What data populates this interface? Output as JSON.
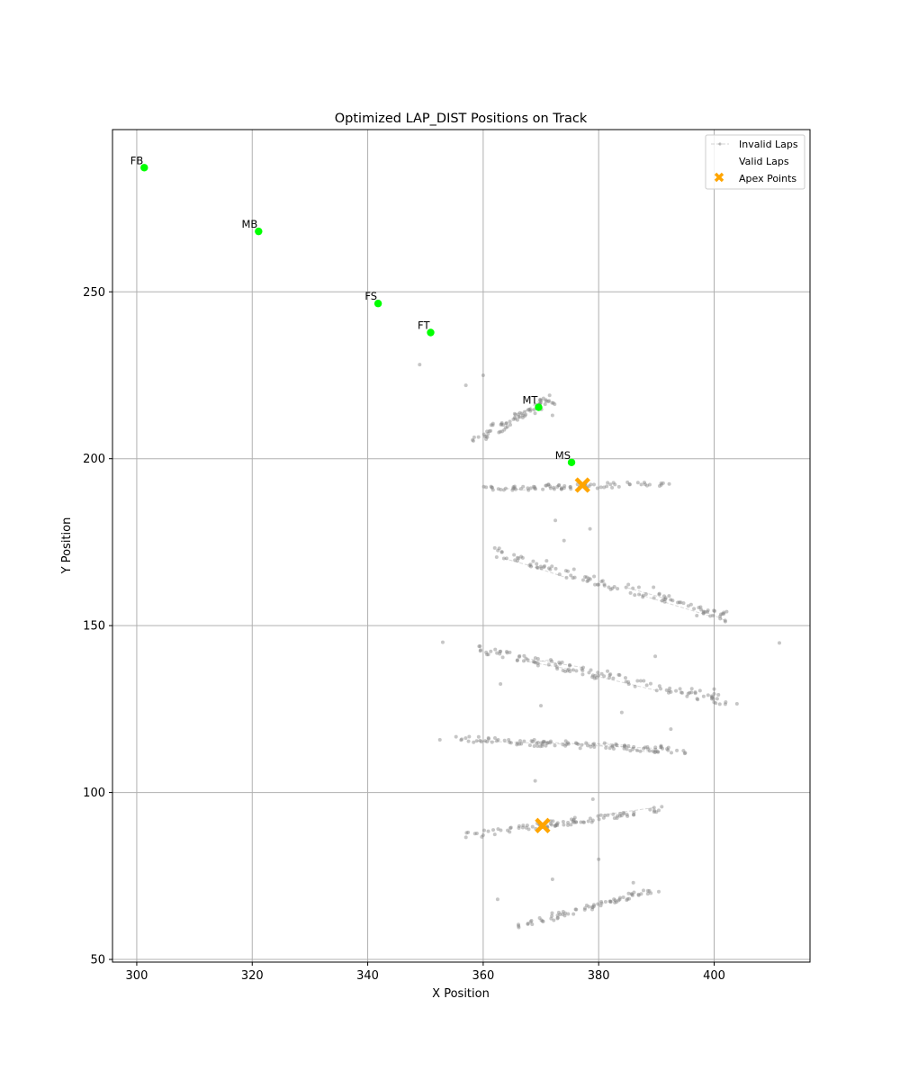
{
  "chart_data": {
    "type": "scatter",
    "title": "Optimized LAP_DIST Positions on Track",
    "xlabel": "X Position",
    "ylabel": "Y Position",
    "xlim": [
      295.8,
      416.6
    ],
    "ylim": [
      49.2,
      298.6
    ],
    "xticks": [
      300,
      320,
      340,
      360,
      380,
      400
    ],
    "yticks": [
      50,
      100,
      150,
      200,
      250
    ],
    "grid": true,
    "legend": {
      "placement": "top-right",
      "entries": [
        "Invalid Laps",
        "Valid Laps",
        "Apex Points"
      ]
    },
    "colors": {
      "invalid_laps": "#808080",
      "markers": "#00ff00",
      "apex": "#ffa500",
      "grid": "#b0b0b0"
    },
    "markers": [
      {
        "label": "FB",
        "x": 301.3,
        "y": 287.2
      },
      {
        "label": "MB",
        "x": 321.1,
        "y": 268.1
      },
      {
        "label": "FS",
        "x": 341.8,
        "y": 246.5
      },
      {
        "label": "FT",
        "x": 350.9,
        "y": 237.8
      },
      {
        "label": "MT",
        "x": 369.6,
        "y": 215.4
      },
      {
        "label": "MS",
        "x": 375.3,
        "y": 198.9
      }
    ],
    "apex_points": [
      {
        "x": 377.2,
        "y": 192.1
      },
      {
        "x": 370.3,
        "y": 90.1
      }
    ],
    "invalid_laps_clusters": [
      {
        "x0": 359.0,
        "y0": 206.0,
        "x1": 372.0,
        "y1": 218.0,
        "n": 70,
        "spread": 1.2
      },
      {
        "x0": 360.0,
        "y0": 191.0,
        "x1": 392.0,
        "y1": 192.5,
        "n": 80,
        "spread": 0.8
      },
      {
        "x0": 362.0,
        "y0": 172.0,
        "x1": 403.0,
        "y1": 152.0,
        "n": 110,
        "spread": 1.4
      },
      {
        "x0": 359.0,
        "y0": 143.0,
        "x1": 403.0,
        "y1": 127.0,
        "n": 120,
        "spread": 1.3
      },
      {
        "x0": 356.0,
        "y0": 116.0,
        "x1": 396.0,
        "y1": 112.5,
        "n": 110,
        "spread": 1.0
      },
      {
        "x0": 357.0,
        "y0": 87.0,
        "x1": 391.0,
        "y1": 95.0,
        "n": 90,
        "spread": 0.9
      },
      {
        "x0": 366.0,
        "y0": 60.0,
        "x1": 390.0,
        "y1": 71.0,
        "n": 70,
        "spread": 0.9
      }
    ],
    "invalid_laps_outliers": [
      {
        "x": 349.0,
        "y": 228.2
      },
      {
        "x": 357.0,
        "y": 222.0
      },
      {
        "x": 360.0,
        "y": 225.0
      },
      {
        "x": 371.5,
        "y": 219.0
      },
      {
        "x": 372.0,
        "y": 213.0
      },
      {
        "x": 372.5,
        "y": 181.5
      },
      {
        "x": 374.0,
        "y": 175.5
      },
      {
        "x": 378.5,
        "y": 179.0
      },
      {
        "x": 389.5,
        "y": 161.5
      },
      {
        "x": 397.0,
        "y": 153.0
      },
      {
        "x": 411.3,
        "y": 144.8
      },
      {
        "x": 353.0,
        "y": 145.0
      },
      {
        "x": 389.8,
        "y": 140.8
      },
      {
        "x": 400.0,
        "y": 131.0
      },
      {
        "x": 384.0,
        "y": 124.0
      },
      {
        "x": 392.5,
        "y": 119.0
      },
      {
        "x": 370.0,
        "y": 126.0
      },
      {
        "x": 363.0,
        "y": 132.5
      },
      {
        "x": 352.5,
        "y": 115.8
      },
      {
        "x": 369.0,
        "y": 103.5
      },
      {
        "x": 379.0,
        "y": 98.0
      },
      {
        "x": 372.0,
        "y": 74.0
      },
      {
        "x": 380.0,
        "y": 80.0
      },
      {
        "x": 362.5,
        "y": 68.0
      },
      {
        "x": 386.0,
        "y": 73.0
      },
      {
        "x": 376.0,
        "y": 65.0
      }
    ]
  }
}
